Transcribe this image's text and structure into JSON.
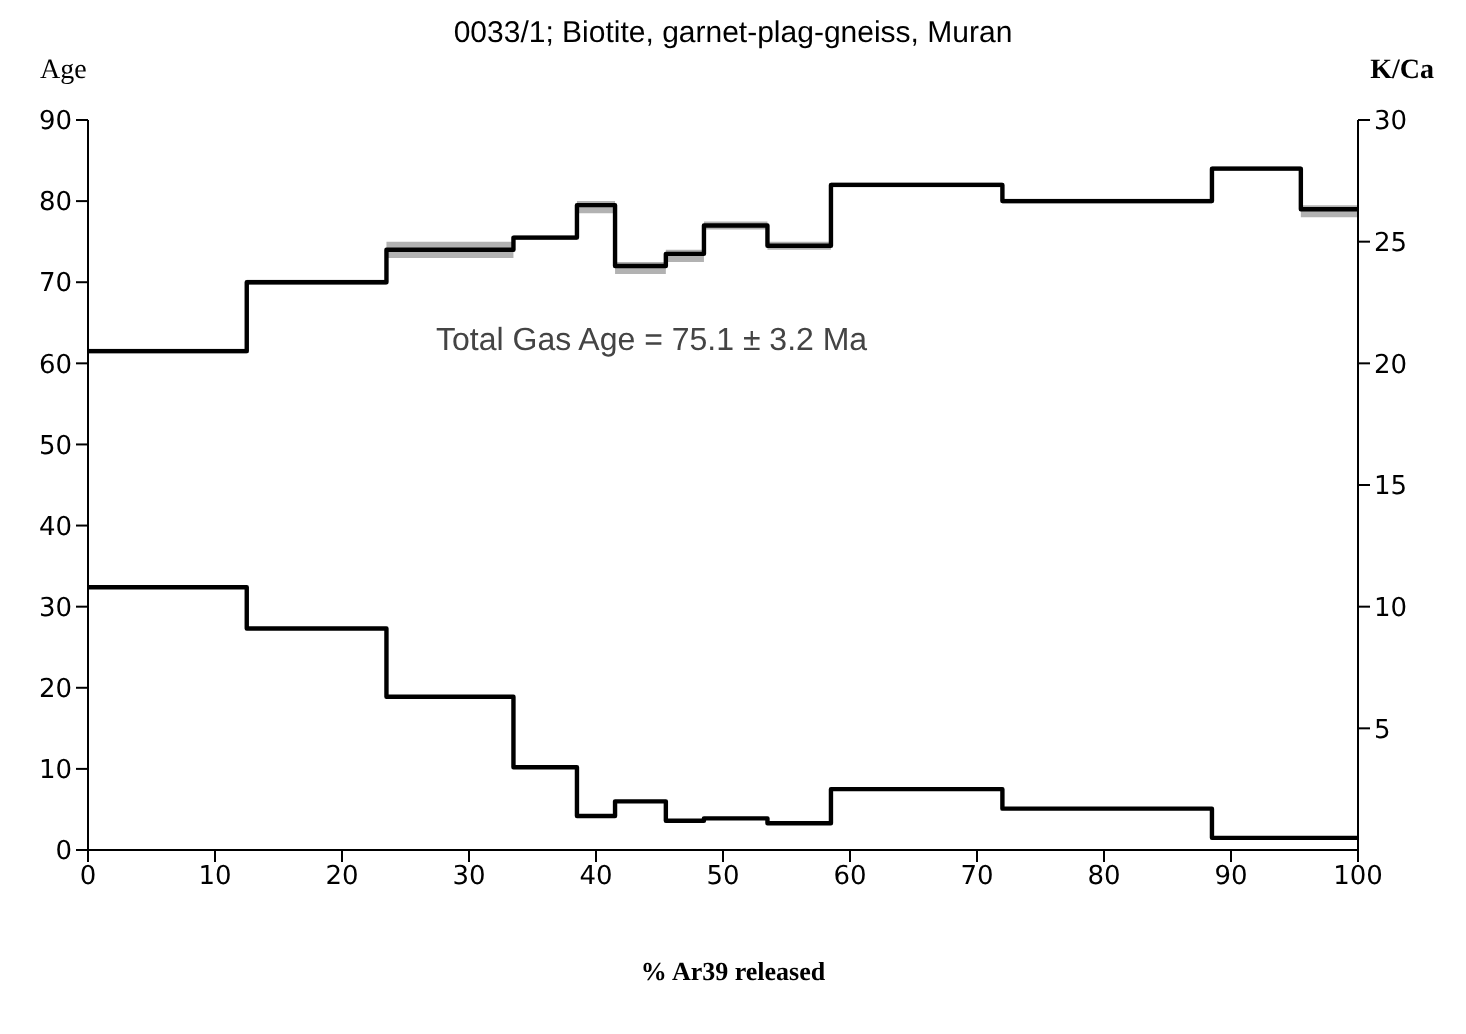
{
  "chart_data": {
    "type": "step",
    "title": "0033/1; Biotite, garnet-plag-gneiss, Muran",
    "xlabel": "% Ar39 released",
    "ylabel": "Age",
    "y2label": "K/Ca",
    "annotations": [
      "Total Gas Age = 75.1 ± 3.2 Ma"
    ],
    "xlim": [
      0,
      100
    ],
    "xticks": [
      0,
      10,
      20,
      30,
      40,
      50,
      60,
      70,
      80,
      90,
      100
    ],
    "ylim": [
      0,
      90
    ],
    "yticks": [
      0,
      10,
      20,
      30,
      40,
      50,
      60,
      70,
      80,
      90
    ],
    "y2lim": [
      0,
      30
    ],
    "y2ticks": [
      5,
      10,
      15,
      20,
      25,
      30
    ],
    "series": [
      {
        "color": "#000000",
        "x": [
          0,
          12.5,
          23.5,
          33.5,
          38.5,
          41.5,
          45.5,
          48.5,
          53.5,
          58.5,
          72,
          88.5,
          95.5,
          100
        ],
        "values": [
          61.5,
          70,
          74,
          75.5,
          79.5,
          72,
          73.5,
          77,
          74.5,
          82,
          80,
          84,
          79,
          79
        ],
        "lower": [
          61.2,
          69.7,
          73,
          75.2,
          78.5,
          71,
          72.5,
          76.5,
          74,
          81.7,
          79.7,
          83.7,
          78,
          78
        ],
        "upper": [
          61.8,
          70.3,
          75,
          75.8,
          80,
          72.5,
          74,
          77.5,
          75,
          82.3,
          80.3,
          84.3,
          79.5,
          79.5
        ]
      },
      {
        "color": "#000000",
        "axis": "y2",
        "x": [
          0,
          12.5,
          23.5,
          33.5,
          38.5,
          41.5,
          45.5,
          48.5,
          53.5,
          58.5,
          72,
          88.5,
          95.5,
          100
        ],
        "values": [
          10.8,
          9.1,
          6.3,
          3.4,
          1.4,
          2,
          1.2,
          1.3,
          1.1,
          2.5,
          1.7,
          0.5,
          0.5,
          0.5
        ]
      }
    ]
  }
}
